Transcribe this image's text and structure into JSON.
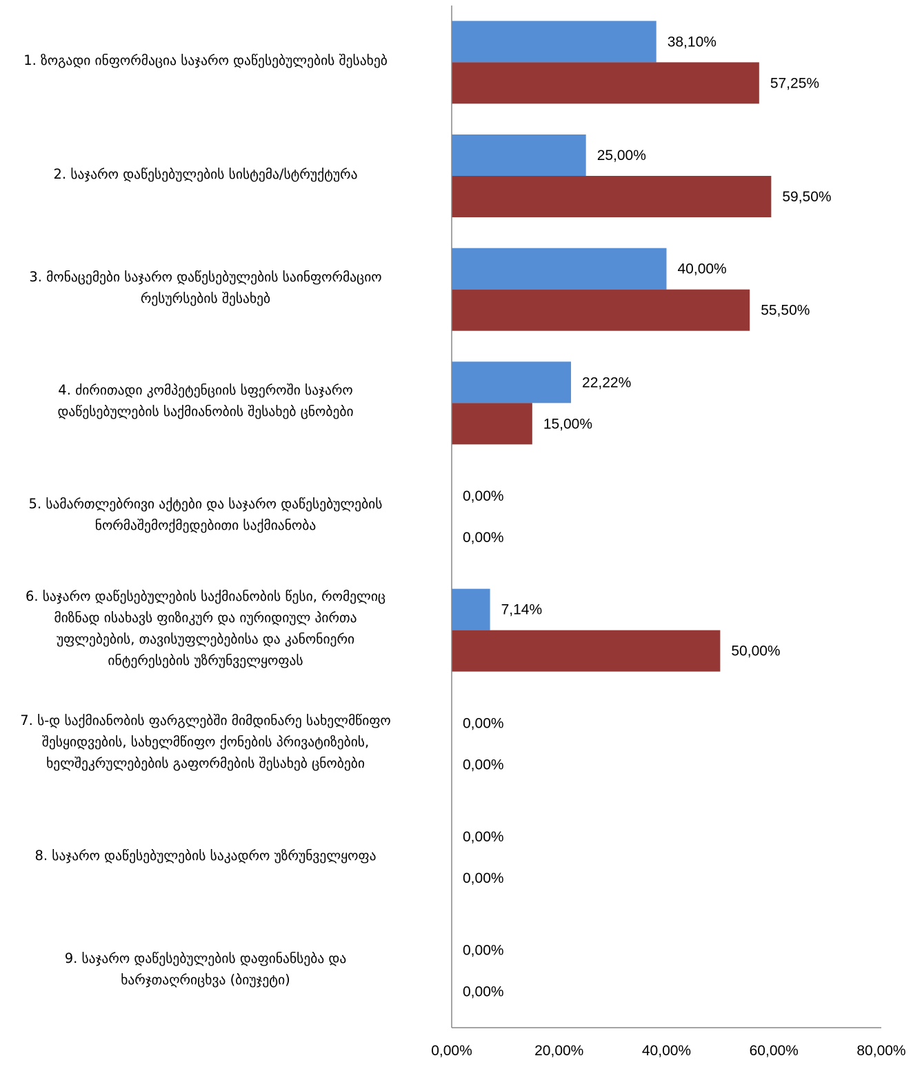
{
  "chart_data": {
    "type": "bar",
    "orientation": "horizontal",
    "categories": [
      [
        "1. ზოგადი ინფორმაცია საჯარო დაწესებულების შესახებ"
      ],
      [
        "2. საჯარო დაწესებულების სისტემა/სტრუქტურა"
      ],
      [
        "3. მონაცემები საჯარო დაწესებულების საინფორმაციო",
        "რესურსების შესახებ"
      ],
      [
        "4. ძირითადი კომპეტენციის სფეროში საჯარო",
        "დაწესებულების საქმიანობის შესახებ ცნობები"
      ],
      [
        "5. სამართლებრივი აქტები და საჯარო დაწესებულების",
        "ნორმაშემოქმედებითი საქმიანობა"
      ],
      [
        "6.  საჯარო დაწესებულების საქმიანობის წესი, რომელიც",
        "მიზნად ისახავს ფიზიკურ და იურიდიულ პირთა",
        "უფლებების, თავისუფლებებისა და კანონიერი",
        "ინტერესების უზრუნველყოფას"
      ],
      [
        "7. ს-დ საქმიანობის ფარგლებში მიმდინარე სახელმწიფო",
        "შესყიდვების, სახელმწიფო ქონების პრივატიზების,",
        "ხელშეკრულებების გაფორმების შესახებ ცნობები"
      ],
      [
        "8. საჯარო დაწესებულების საკადრო უზრუნველყოფა"
      ],
      [
        "9. საჯარო დაწესებულების დაფინანსება და",
        "ხარჯთაღრიცხვა (ბიუჯეტი)"
      ]
    ],
    "series": [
      {
        "values": [
          38.1,
          25.0,
          40.0,
          22.22,
          0.0,
          7.14,
          0.0,
          0.0,
          0.0
        ],
        "labels": [
          "38,10%",
          "25,00%",
          "40,00%",
          "22,22%",
          "0,00%",
          "7,14%",
          "0,00%",
          "0,00%",
          "0,00%"
        ],
        "color": "#558ed5"
      },
      {
        "values": [
          57.25,
          59.5,
          55.5,
          15.0,
          0.0,
          50.0,
          0.0,
          0.0,
          0.0
        ],
        "labels": [
          "57,25%",
          "59,50%",
          "55,50%",
          "15,00%",
          "0,00%",
          "50,00%",
          "0,00%",
          "0,00%",
          "0,00%"
        ],
        "color": "#953735"
      }
    ],
    "xlim": [
      0,
      80
    ],
    "xticks": [
      0,
      20,
      40,
      60,
      80
    ],
    "xtick_labels": [
      "0,00%",
      "20,00%",
      "40,00%",
      "60,00%",
      "80,00%"
    ],
    "grid": false,
    "legend": "none",
    "axis_color": "#868686"
  }
}
